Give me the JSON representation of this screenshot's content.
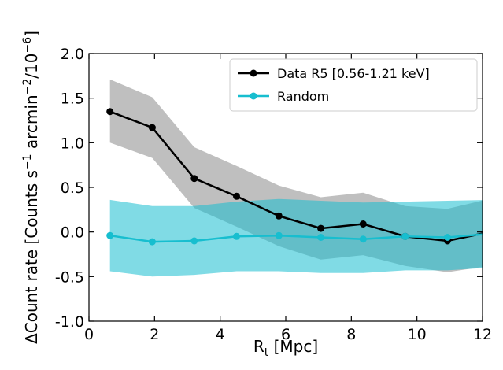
{
  "chart_data": {
    "type": "line",
    "xlabel": "R",
    "xlabel_sub": "t",
    "xlabel_unit": " [Mpc]",
    "ylabel": "ΔCount rate [Counts s",
    "ylabel_sup1": "−1",
    "ylabel_mid": " arcmin",
    "ylabel_sup2": "−2",
    "ylabel_end": "/10",
    "ylabel_sup3": "−6",
    "ylabel_close": "]",
    "xlim": [
      0,
      12
    ],
    "ylim": [
      -1.0,
      2.0
    ],
    "xticks": [
      0,
      2,
      4,
      6,
      8,
      10,
      12
    ],
    "xtick_labels": [
      "0",
      "2",
      "4",
      "6",
      "8",
      "10",
      "12"
    ],
    "yticks": [
      -1.0,
      -0.5,
      0.0,
      0.5,
      1.0,
      1.5,
      2.0
    ],
    "ytick_labels": [
      "-1.0",
      "-0.5",
      "0.0",
      "0.5",
      "1.0",
      "1.5",
      "2.0"
    ],
    "grid": false,
    "legend_position": "top-right",
    "series": [
      {
        "name": "Data R5 [0.56-1.21 keV]",
        "color": "#000000",
        "band_color": "#7f7f7f",
        "band_opacity": 0.5,
        "x": [
          0.64,
          1.93,
          3.21,
          4.5,
          5.79,
          7.07,
          8.36,
          9.64,
          10.93,
          12.21
        ],
        "y": [
          1.35,
          1.17,
          0.6,
          0.4,
          0.18,
          0.04,
          0.09,
          -0.05,
          -0.1,
          0.0
        ],
        "lower": [
          1.0,
          0.83,
          0.27,
          0.06,
          -0.16,
          -0.31,
          -0.26,
          -0.38,
          -0.45,
          -0.38
        ],
        "upper": [
          1.71,
          1.51,
          0.95,
          0.74,
          0.52,
          0.39,
          0.44,
          0.29,
          0.26,
          0.37
        ]
      },
      {
        "name": "Random",
        "color": "#17becf",
        "band_color": "#17becf",
        "band_opacity": 0.55,
        "x": [
          0.64,
          1.93,
          3.21,
          4.5,
          5.79,
          7.07,
          8.36,
          9.64,
          10.93,
          12.21
        ],
        "y": [
          -0.04,
          -0.11,
          -0.1,
          -0.05,
          -0.04,
          -0.06,
          -0.08,
          -0.05,
          -0.06,
          -0.02
        ],
        "lower": [
          -0.44,
          -0.5,
          -0.48,
          -0.44,
          -0.44,
          -0.46,
          -0.46,
          -0.43,
          -0.43,
          -0.4
        ],
        "upper": [
          0.36,
          0.29,
          0.29,
          0.34,
          0.37,
          0.35,
          0.33,
          0.34,
          0.35,
          0.36
        ]
      }
    ]
  }
}
